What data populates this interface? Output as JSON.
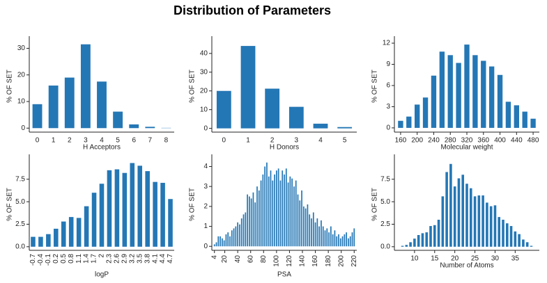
{
  "title": "Distribution of Parameters",
  "chart_data": [
    {
      "type": "bar",
      "xlabel": "H Acceptors",
      "ylabel": "% OF SET",
      "color": "#2477b5",
      "categories": [
        "0",
        "1",
        "2",
        "3",
        "4",
        "5",
        "6",
        "7",
        "8"
      ],
      "values": [
        9,
        16,
        19,
        31.5,
        17.5,
        6.2,
        1.4,
        0.5,
        0.1
      ],
      "ylim": [
        -1.5,
        33
      ],
      "yticks": [
        0,
        10,
        20,
        30
      ]
    },
    {
      "type": "bar",
      "xlabel": "H Donors",
      "ylabel": "% OF SET",
      "color": "#2477b5",
      "categories": [
        "0",
        "1",
        "2",
        "3",
        "4",
        "5"
      ],
      "values": [
        20,
        44,
        21.2,
        11.5,
        2.5,
        0.7
      ],
      "ylim": [
        -2,
        47
      ],
      "yticks": [
        0,
        10,
        20,
        30,
        40
      ]
    },
    {
      "type": "bar",
      "xlabel": "Molecular weight",
      "ylabel": "% OF SET",
      "color": "#2477b5",
      "x": [
        160,
        180,
        200,
        220,
        240,
        260,
        280,
        300,
        320,
        340,
        360,
        380,
        400,
        420,
        440,
        460,
        480
      ],
      "values": [
        1.0,
        1.6,
        3.3,
        4.3,
        7.4,
        10.8,
        10.3,
        9.2,
        11.8,
        10.3,
        9.5,
        8.7,
        7.5,
        3.7,
        3.2,
        2.3,
        1.3
      ],
      "xlim": [
        145,
        495
      ],
      "xticks": [
        160,
        200,
        240,
        280,
        320,
        360,
        400,
        440,
        480
      ],
      "ylim": [
        -0.6,
        12.4
      ],
      "yticks": [
        0,
        3,
        6,
        9,
        12
      ]
    },
    {
      "type": "bar",
      "xlabel": "logP",
      "ylabel": "% OF SET",
      "color": "#2477b5",
      "categories": [
        "-0.7",
        "-0.4",
        "-0.1",
        "0.2",
        "0.5",
        "0.8",
        "1.1",
        "1.4",
        "1.7",
        "2",
        "2.3",
        "2.6",
        "2.9",
        "3.2",
        "3.5",
        "3.8",
        "4.1",
        "4.4",
        "4.7"
      ],
      "values": [
        1.1,
        1.1,
        1.4,
        2.0,
        2.8,
        3.3,
        3.2,
        4.5,
        6.0,
        7.0,
        8.5,
        8.6,
        8.2,
        9.3,
        9.0,
        8.4,
        7.2,
        7.1,
        5.3
      ],
      "ylim": [
        -0.4,
        9.8
      ],
      "yticks": [
        {
          "value": 0,
          "label": "0.0"
        },
        2.5,
        {
          "value": 5,
          "label": "5.0"
        },
        7.5
      ]
    },
    {
      "type": "bar",
      "xlabel": "PSA",
      "ylabel": "% OF SET",
      "color": "#2477b5",
      "x": [
        4,
        7,
        10,
        13,
        16,
        19,
        22,
        25,
        28,
        31,
        34,
        37,
        40,
        43,
        46,
        49,
        52,
        55,
        58,
        61,
        64,
        67,
        70,
        73,
        76,
        79,
        82,
        85,
        88,
        91,
        94,
        97,
        100,
        103,
        106,
        109,
        112,
        115,
        118,
        121,
        124,
        127,
        130,
        133,
        136,
        139,
        142,
        145,
        148,
        151,
        154,
        157,
        160,
        163,
        166,
        169,
        172,
        175,
        178,
        181,
        184,
        187,
        190,
        193,
        196,
        199,
        202,
        205,
        208,
        211,
        214,
        217,
        220
      ],
      "values": [
        0.1,
        0.2,
        0.5,
        0.5,
        0.4,
        0.3,
        0.6,
        0.7,
        0.5,
        0.8,
        0.9,
        1.0,
        1.2,
        1.1,
        1.4,
        1.6,
        1.7,
        2.6,
        2.5,
        2.4,
        2.7,
        2.2,
        3.0,
        2.8,
        3.3,
        3.6,
        4.0,
        4.2,
        3.5,
        3.8,
        3.3,
        3.6,
        3.8,
        3.9,
        3.3,
        3.8,
        3.6,
        3.9,
        3.2,
        3.5,
        3.4,
        3.0,
        3.3,
        2.6,
        2.3,
        2.8,
        2.0,
        1.9,
        2.1,
        1.6,
        1.4,
        1.7,
        1.2,
        1.4,
        1.0,
        1.3,
        1.0,
        0.8,
        0.9,
        0.7,
        1.0,
        0.6,
        0.8,
        0.5,
        0.6,
        0.4,
        0.5,
        0.6,
        0.7,
        0.4,
        0.5,
        0.7,
        0.9
      ],
      "xlim": [
        0,
        224
      ],
      "xticks": [
        4,
        20,
        40,
        60,
        80,
        100,
        120,
        140,
        160,
        180,
        200,
        220
      ],
      "ylim": [
        -0.2,
        4.4
      ],
      "yticks": [
        0,
        1,
        2,
        3,
        4
      ]
    },
    {
      "type": "bar",
      "xlabel": "Number of Atoms",
      "ylabel": "% OF SET",
      "color": "#2477b5",
      "x": [
        7,
        8,
        9,
        10,
        11,
        12,
        13,
        14,
        15,
        16,
        17,
        18,
        19,
        20,
        21,
        22,
        23,
        24,
        25,
        26,
        27,
        28,
        29,
        30,
        31,
        32,
        33,
        34,
        35,
        36,
        37,
        38,
        39
      ],
      "values": [
        0.1,
        0.2,
        0.5,
        0.9,
        1.3,
        1.5,
        1.6,
        2.3,
        2.4,
        3.0,
        5.6,
        8.3,
        9.2,
        6.7,
        7.6,
        8.0,
        7.0,
        6.5,
        5.6,
        5.7,
        5.7,
        4.9,
        4.5,
        4.6,
        3.3,
        3.0,
        2.6,
        2.3,
        1.7,
        1.4,
        0.8,
        0.5,
        0.1
      ],
      "xlim": [
        5,
        41
      ],
      "xticks": [
        10,
        15,
        20,
        25,
        30,
        35
      ],
      "ylim": [
        -0.4,
        9.8
      ],
      "yticks": [
        {
          "value": 0,
          "label": "0.0"
        },
        2.5,
        {
          "value": 5,
          "label": "5.0"
        },
        7.5
      ]
    }
  ]
}
